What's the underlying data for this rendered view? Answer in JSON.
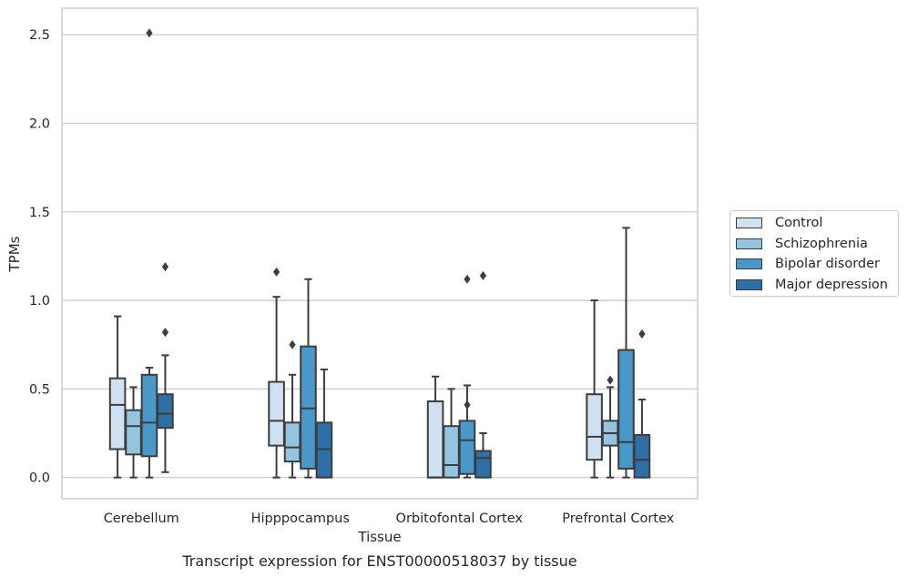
{
  "chart_data": {
    "type": "boxplot",
    "title": "Transcript expression for ENST00000518037 by tissue",
    "xlabel": "Tissue",
    "ylabel": "TPMs",
    "ylim": [
      -0.12,
      2.65
    ],
    "yticks": [
      0.0,
      0.5,
      1.0,
      1.5,
      2.0,
      2.5
    ],
    "ytick_labels": [
      "0.0",
      "0.5",
      "1.0",
      "1.5",
      "2.0",
      "2.5"
    ],
    "categories": [
      "Cerebellum",
      "Hipppocampus",
      "Orbitofontal Cortex",
      "Prefrontal Cortex"
    ],
    "grid": "y",
    "legend_position": "right",
    "series": [
      {
        "name": "Control",
        "color": "#d0e1f2",
        "boxes": [
          {
            "whislo": 0.0,
            "q1": 0.16,
            "med": 0.41,
            "q3": 0.56,
            "whishi": 0.91,
            "fliers": []
          },
          {
            "whislo": 0.0,
            "q1": 0.18,
            "med": 0.32,
            "q3": 0.54,
            "whishi": 1.02,
            "fliers": [
              1.16
            ]
          },
          {
            "whislo": 0.0,
            "q1": 0.0,
            "med": 0.0,
            "q3": 0.43,
            "whishi": 0.57,
            "fliers": []
          },
          {
            "whislo": 0.0,
            "q1": 0.1,
            "med": 0.23,
            "q3": 0.47,
            "whishi": 1.0,
            "fliers": []
          }
        ]
      },
      {
        "name": "Schizophrenia",
        "color": "#94c4df",
        "boxes": [
          {
            "whislo": 0.0,
            "q1": 0.13,
            "med": 0.29,
            "q3": 0.38,
            "whishi": 0.51,
            "fliers": []
          },
          {
            "whislo": 0.0,
            "q1": 0.09,
            "med": 0.17,
            "q3": 0.31,
            "whishi": 0.58,
            "fliers": [
              0.75
            ]
          },
          {
            "whislo": 0.0,
            "q1": 0.0,
            "med": 0.07,
            "q3": 0.29,
            "whishi": 0.5,
            "fliers": []
          },
          {
            "whislo": 0.0,
            "q1": 0.18,
            "med": 0.25,
            "q3": 0.32,
            "whishi": 0.51,
            "fliers": [
              0.55
            ]
          }
        ]
      },
      {
        "name": "Bipolar disorder",
        "color": "#4a98c9",
        "boxes": [
          {
            "whislo": 0.0,
            "q1": 0.12,
            "med": 0.31,
            "q3": 0.58,
            "whishi": 0.62,
            "fliers": [
              2.51
            ]
          },
          {
            "whislo": 0.0,
            "q1": 0.05,
            "med": 0.39,
            "q3": 0.74,
            "whishi": 1.12,
            "fliers": []
          },
          {
            "whislo": 0.0,
            "q1": 0.02,
            "med": 0.21,
            "q3": 0.32,
            "whishi": 0.52,
            "fliers": [
              0.41,
              1.12
            ]
          },
          {
            "whislo": 0.0,
            "q1": 0.05,
            "med": 0.2,
            "q3": 0.72,
            "whishi": 1.41,
            "fliers": []
          }
        ]
      },
      {
        "name": "Major depression",
        "color": "#2e6fa8",
        "boxes": [
          {
            "whislo": 0.03,
            "q1": 0.28,
            "med": 0.36,
            "q3": 0.47,
            "whishi": 0.69,
            "fliers": [
              0.82,
              1.19
            ]
          },
          {
            "whislo": 0.0,
            "q1": 0.0,
            "med": 0.16,
            "q3": 0.31,
            "whishi": 0.61,
            "fliers": []
          },
          {
            "whislo": 0.0,
            "q1": 0.0,
            "med": 0.11,
            "q3": 0.15,
            "whishi": 0.25,
            "fliers": [
              1.14
            ]
          },
          {
            "whislo": 0.0,
            "q1": 0.0,
            "med": 0.1,
            "q3": 0.24,
            "whishi": 0.44,
            "fliers": [
              0.81
            ]
          }
        ]
      }
    ]
  }
}
